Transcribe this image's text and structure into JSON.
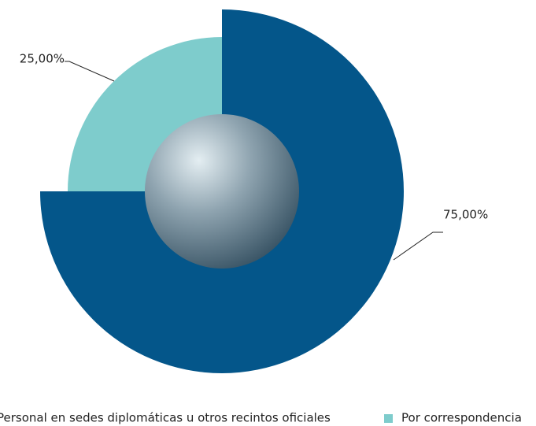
{
  "chart_data": {
    "type": "pie",
    "categories": [
      "Personal en sedes diplomáticas u otros recintos oficiales",
      "Por correspondencia"
    ],
    "values": [
      75,
      25
    ],
    "value_labels": [
      "75,00%",
      "25,00%"
    ],
    "colors": [
      "#04568a",
      "#7ecccc"
    ]
  }
}
